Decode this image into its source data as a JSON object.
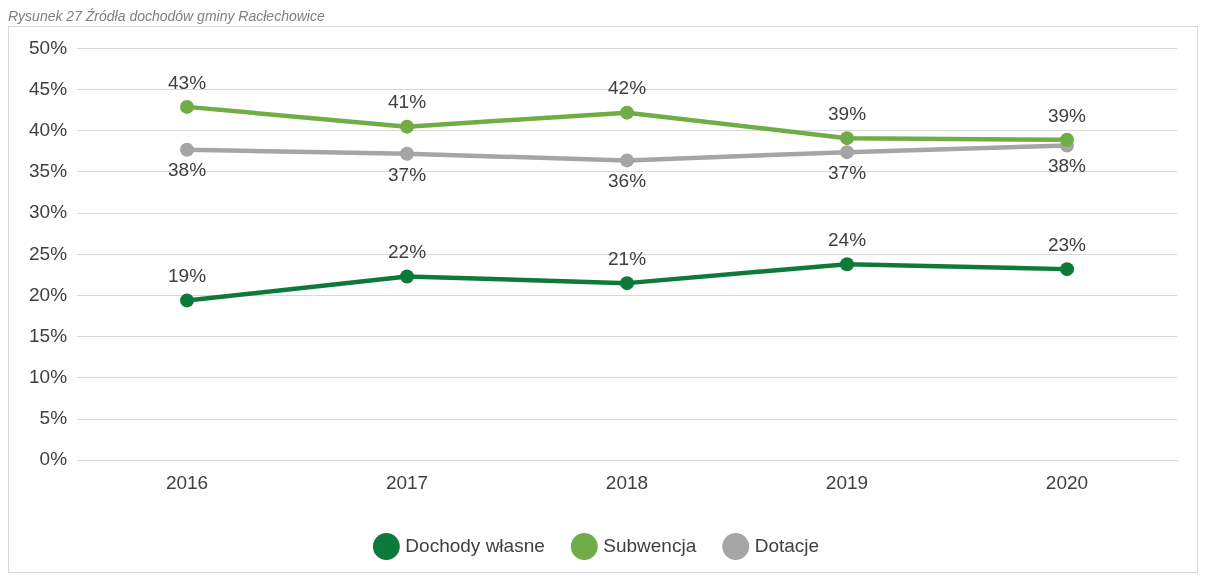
{
  "chart_data": {
    "type": "line",
    "title": "Rysunek 27 Źródła dochodów gminy Racłechowice",
    "categories": [
      "2016",
      "2017",
      "2018",
      "2019",
      "2020"
    ],
    "series": [
      {
        "name": "Dochody własne",
        "color": "#0e7a3a",
        "values": [
          19.4,
          22.3,
          21.5,
          23.8,
          23.2
        ],
        "value_labels": [
          "19%",
          "22%",
          "21%",
          "24%",
          "23%"
        ]
      },
      {
        "name": "Subwencja",
        "color": "#70ad47",
        "values": [
          42.9,
          40.5,
          42.2,
          39.1,
          38.9
        ],
        "value_labels": [
          "43%",
          "41%",
          "42%",
          "39%",
          "39%"
        ]
      },
      {
        "name": "Dotacje",
        "color": "#a5a5a5",
        "values": [
          37.7,
          37.2,
          36.4,
          37.4,
          38.2
        ],
        "value_labels": [
          "38%",
          "37%",
          "36%",
          "37%",
          "38%"
        ]
      }
    ],
    "ylim": [
      0,
      50
    ],
    "yticks": [
      {
        "value": 0,
        "label": "0%"
      },
      {
        "value": 5,
        "label": "5%"
      },
      {
        "value": 10,
        "label": "10%"
      },
      {
        "value": 15,
        "label": "15%"
      },
      {
        "value": 20,
        "label": "20%"
      },
      {
        "value": 25,
        "label": "25%"
      },
      {
        "value": 30,
        "label": "30%"
      },
      {
        "value": 35,
        "label": "35%"
      },
      {
        "value": 40,
        "label": "40%"
      },
      {
        "value": 45,
        "label": "45%"
      },
      {
        "value": 50,
        "label": "50%"
      }
    ],
    "grid": "y",
    "legend": "bottom",
    "marker": "circle",
    "line_style": "solid"
  }
}
